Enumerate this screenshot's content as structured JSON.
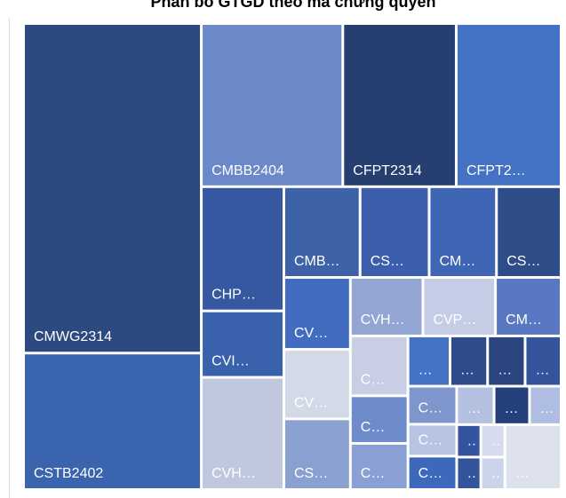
{
  "chart_data": {
    "type": "treemap",
    "title": "Phân bổ GTGD theo mã chứng quyền",
    "categories": [
      "CMWG2314",
      "CSTB2402",
      "CMBB2404",
      "CFPT2314",
      "CFPT2…",
      "CHP…",
      "CVI…",
      "CVH…",
      "CMB…",
      "CS…",
      "CM…",
      "CS…",
      "CV…",
      "CV…",
      "CS…",
      "CVH…",
      "CVP…",
      "CM…",
      "C…",
      "C…",
      "C…",
      "…",
      "…",
      "…",
      "…",
      "C…",
      "C…",
      "C…",
      "…",
      "…",
      "…",
      "…",
      "…",
      "…",
      "…",
      "…"
    ],
    "values": [
      701,
      287,
      277,
      221,
      204,
      122,
      64,
      110,
      83,
      75,
      73,
      70,
      57,
      55,
      56,
      51,
      51,
      46,
      42,
      33,
      32,
      26,
      23,
      23,
      22,
      23,
      19,
      20,
      18,
      17,
      15,
      10,
      10,
      47,
      10,
      10
    ],
    "colors": [
      "#2d4a80",
      "#3a64ae",
      "#6b88c8",
      "#263f70",
      "#4472c4",
      "#3558a0",
      "#3a62ac",
      "#c0c8e0",
      "#3e62a8",
      "#3b5fad",
      "#3f66b4",
      "#2e4c88",
      "#416cc0",
      "#d4d9e8",
      "#8aa0d0",
      "#93a6d3",
      "#c5cde6",
      "#5878c4",
      "#c8cee4",
      "#6e8ccc",
      "#8aa0d4",
      "#4472c4",
      "#2e4c8c",
      "#2b4580",
      "#33539a",
      "#7e96cc",
      "#b8c4e4",
      "#3e68bc",
      "#b3c0e0",
      "#24407a",
      "#b0bde2",
      "#3454a0",
      "#d6dcee",
      "#dde1ee",
      "#33539a",
      "#ccd4ec"
    ]
  }
}
